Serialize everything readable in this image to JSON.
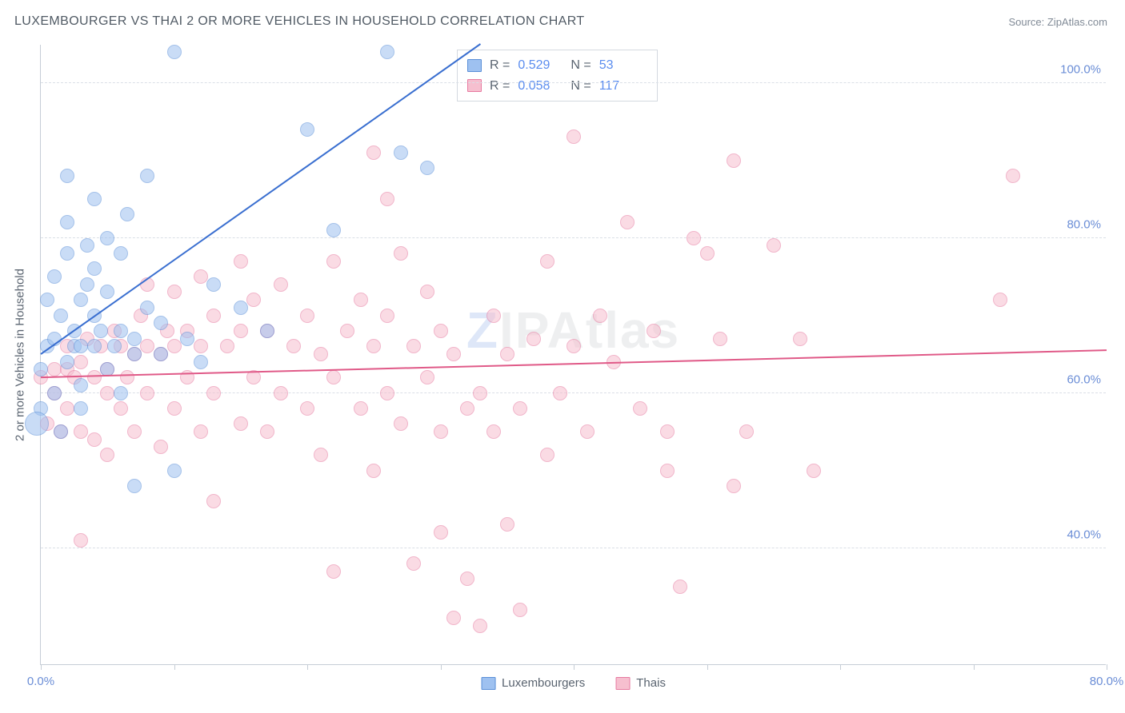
{
  "title": "LUXEMBOURGER VS THAI 2 OR MORE VEHICLES IN HOUSEHOLD CORRELATION CHART",
  "source_prefix": "Source: ",
  "source_name": "ZipAtlas.com",
  "watermark": {
    "z": "Z",
    "rest": "IPAtlas"
  },
  "chart": {
    "type": "scatter",
    "background_color": "#ffffff",
    "grid_color": "#dadfe6",
    "axis_color": "#c6cdd6",
    "tick_label_color": "#6a8dd6",
    "label_color": "#5a6470",
    "y_axis_title": "2 or more Vehicles in Household",
    "xlim": [
      0,
      80
    ],
    "ylim": [
      25,
      105
    ],
    "x_ticks": [
      0,
      10,
      20,
      30,
      40,
      50,
      60,
      70,
      80
    ],
    "x_tick_labels": {
      "0": "0.0%",
      "80": "80.0%"
    },
    "y_ticks": [
      40,
      60,
      80,
      100
    ],
    "y_tick_labels": {
      "40": "40.0%",
      "60": "60.0%",
      "80": "80.0%",
      "100": "100.0%"
    },
    "marker_radius": 9,
    "marker_opacity": 0.55,
    "series": [
      {
        "id": "luxembourgers",
        "label": "Luxembourgers",
        "color_fill": "#9ec1f0",
        "color_stroke": "#5a8fd8",
        "stats": {
          "R": "0.529",
          "N": "53"
        },
        "trend": {
          "x0": 0,
          "y0": 65,
          "x1": 33,
          "y1": 105,
          "color": "#3a6fd0",
          "width": 2
        },
        "points": [
          [
            0,
            63
          ],
          [
            0,
            58
          ],
          [
            0.5,
            66
          ],
          [
            0.5,
            72
          ],
          [
            1,
            60
          ],
          [
            1,
            67
          ],
          [
            1,
            75
          ],
          [
            1.5,
            55
          ],
          [
            1.5,
            70
          ],
          [
            2,
            64
          ],
          [
            2,
            78
          ],
          [
            2,
            82
          ],
          [
            2,
            88
          ],
          [
            2.5,
            66
          ],
          [
            2.5,
            68
          ],
          [
            3,
            58
          ],
          [
            3,
            61
          ],
          [
            3,
            66
          ],
          [
            3,
            72
          ],
          [
            3.5,
            74
          ],
          [
            3.5,
            79
          ],
          [
            4,
            66
          ],
          [
            4,
            70
          ],
          [
            4,
            76
          ],
          [
            4,
            85
          ],
          [
            4.5,
            68
          ],
          [
            5,
            63
          ],
          [
            5,
            73
          ],
          [
            5,
            80
          ],
          [
            5.5,
            66
          ],
          [
            6,
            60
          ],
          [
            6,
            68
          ],
          [
            6,
            78
          ],
          [
            6.5,
            83
          ],
          [
            7,
            65
          ],
          [
            7,
            48
          ],
          [
            7,
            67
          ],
          [
            8,
            71
          ],
          [
            8,
            88
          ],
          [
            9,
            65
          ],
          [
            9,
            69
          ],
          [
            10,
            104
          ],
          [
            10,
            50
          ],
          [
            11,
            67
          ],
          [
            12,
            64
          ],
          [
            13,
            74
          ],
          [
            15,
            71
          ],
          [
            17,
            68
          ],
          [
            20,
            94
          ],
          [
            22,
            81
          ],
          [
            26,
            104
          ],
          [
            27,
            91
          ],
          [
            29,
            89
          ]
        ],
        "big_point": {
          "x": -0.3,
          "y": 56,
          "r": 15
        }
      },
      {
        "id": "thais",
        "label": "Thais",
        "color_fill": "#f6bfcf",
        "color_stroke": "#e77aa0",
        "stats": {
          "R": "0.058",
          "N": "117"
        },
        "trend": {
          "x0": 0,
          "y0": 62,
          "x1": 80,
          "y1": 65.5,
          "color": "#e05a88",
          "width": 2
        },
        "points": [
          [
            0,
            62
          ],
          [
            0.5,
            56
          ],
          [
            1,
            60
          ],
          [
            1,
            63
          ],
          [
            1.5,
            55
          ],
          [
            2,
            58
          ],
          [
            2,
            66
          ],
          [
            2,
            63
          ],
          [
            2.5,
            62
          ],
          [
            3,
            41
          ],
          [
            3,
            55
          ],
          [
            3,
            64
          ],
          [
            3.5,
            67
          ],
          [
            4,
            54
          ],
          [
            4,
            62
          ],
          [
            4.5,
            66
          ],
          [
            5,
            52
          ],
          [
            5,
            60
          ],
          [
            5,
            63
          ],
          [
            5.5,
            68
          ],
          [
            6,
            58
          ],
          [
            6,
            66
          ],
          [
            6.5,
            62
          ],
          [
            7,
            55
          ],
          [
            7,
            65
          ],
          [
            7.5,
            70
          ],
          [
            8,
            60
          ],
          [
            8,
            66
          ],
          [
            8,
            74
          ],
          [
            9,
            53
          ],
          [
            9,
            65
          ],
          [
            9.5,
            68
          ],
          [
            10,
            58
          ],
          [
            10,
            66
          ],
          [
            10,
            73
          ],
          [
            11,
            62
          ],
          [
            11,
            68
          ],
          [
            12,
            55
          ],
          [
            12,
            66
          ],
          [
            12,
            75
          ],
          [
            13,
            46
          ],
          [
            13,
            60
          ],
          [
            13,
            70
          ],
          [
            14,
            66
          ],
          [
            15,
            56
          ],
          [
            15,
            68
          ],
          [
            15,
            77
          ],
          [
            16,
            62
          ],
          [
            16,
            72
          ],
          [
            17,
            55
          ],
          [
            17,
            68
          ],
          [
            18,
            60
          ],
          [
            18,
            74
          ],
          [
            19,
            66
          ],
          [
            20,
            58
          ],
          [
            20,
            70
          ],
          [
            21,
            52
          ],
          [
            21,
            65
          ],
          [
            22,
            37
          ],
          [
            22,
            62
          ],
          [
            22,
            77
          ],
          [
            23,
            68
          ],
          [
            24,
            58
          ],
          [
            24,
            72
          ],
          [
            25,
            91
          ],
          [
            25,
            50
          ],
          [
            25,
            66
          ],
          [
            26,
            60
          ],
          [
            26,
            70
          ],
          [
            26,
            85
          ],
          [
            27,
            56
          ],
          [
            27,
            78
          ],
          [
            28,
            38
          ],
          [
            28,
            66
          ],
          [
            29,
            62
          ],
          [
            29,
            73
          ],
          [
            30,
            42
          ],
          [
            30,
            55
          ],
          [
            30,
            68
          ],
          [
            31,
            31
          ],
          [
            31,
            65
          ],
          [
            32,
            58
          ],
          [
            32,
            36
          ],
          [
            33,
            60
          ],
          [
            33,
            30
          ],
          [
            34,
            55
          ],
          [
            34,
            70
          ],
          [
            35,
            43
          ],
          [
            35,
            65
          ],
          [
            36,
            58
          ],
          [
            36,
            32
          ],
          [
            37,
            67
          ],
          [
            38,
            52
          ],
          [
            38,
            77
          ],
          [
            39,
            60
          ],
          [
            40,
            93
          ],
          [
            40,
            66
          ],
          [
            41,
            55
          ],
          [
            42,
            70
          ],
          [
            43,
            64
          ],
          [
            44,
            82
          ],
          [
            45,
            58
          ],
          [
            46,
            68
          ],
          [
            47,
            55
          ],
          [
            47,
            50
          ],
          [
            48,
            35
          ],
          [
            49,
            80
          ],
          [
            50,
            78
          ],
          [
            51,
            67
          ],
          [
            52,
            48
          ],
          [
            52,
            90
          ],
          [
            53,
            55
          ],
          [
            55,
            79
          ],
          [
            57,
            67
          ],
          [
            58,
            50
          ],
          [
            72,
            72
          ],
          [
            73,
            88
          ]
        ]
      }
    ],
    "stats_box_labels": {
      "R": "R  =",
      "N": "N  ="
    }
  },
  "legend": {
    "series1_label": "Luxembourgers",
    "series2_label": "Thais"
  }
}
